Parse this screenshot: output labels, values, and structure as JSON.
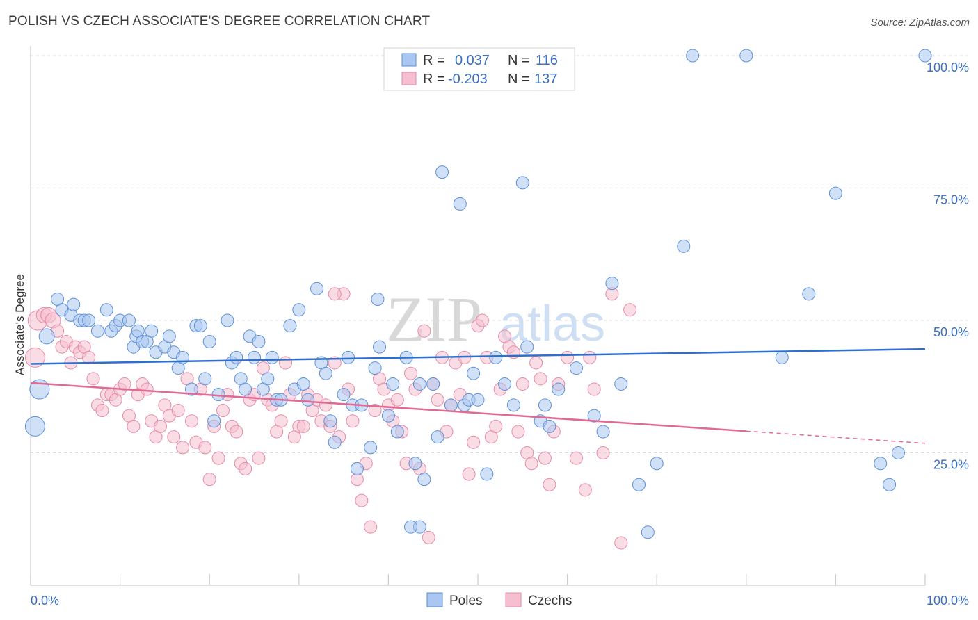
{
  "title": "POLISH VS CZECH ASSOCIATE'S DEGREE CORRELATION CHART",
  "source": "Source: ZipAtlas.com",
  "watermark": {
    "zip": "ZIP",
    "atlas": "atlas"
  },
  "legend": {
    "poles": {
      "r_label": "R =",
      "r_value": "0.037",
      "n_label": "N =",
      "n_value": "116"
    },
    "czechs": {
      "r_label": "R =",
      "r_value": "-0.203",
      "n_label": "N =",
      "n_value": "137"
    }
  },
  "colors": {
    "poles_fill": "#a9c7f0",
    "poles_stroke": "#5b8fd8",
    "poles_line": "#2d6fcf",
    "czechs_fill": "#f6bfd0",
    "czechs_stroke": "#e58aa8",
    "czechs_line": "#e06a93",
    "tick_label": "#3a6fc4"
  },
  "chart_data": {
    "type": "scatter",
    "title": "POLISH VS CZECH ASSOCIATE'S DEGREE CORRELATION CHART",
    "xlabel": "",
    "ylabel": "Associate's Degree",
    "xlim": [
      0,
      100
    ],
    "ylim": [
      0,
      100
    ],
    "x_tick_labels": [
      "0.0%",
      "100.0%"
    ],
    "y_tick_labels": [
      "25.0%",
      "50.0%",
      "75.0%",
      "100.0%"
    ],
    "y_ticks": [
      25,
      50,
      75,
      100
    ],
    "grid": true,
    "legend_items": [
      "Poles",
      "Czechs"
    ],
    "series": [
      {
        "name": "Poles",
        "trend": {
          "x0": 0,
          "y0": 41.8,
          "x1": 100,
          "y1": 44.6
        },
        "points": [
          [
            0.5,
            30
          ],
          [
            1,
            37
          ],
          [
            1.8,
            47
          ],
          [
            3,
            54
          ],
          [
            3.5,
            52
          ],
          [
            4.5,
            51
          ],
          [
            4.8,
            53
          ],
          [
            5.5,
            50
          ],
          [
            6,
            50
          ],
          [
            6.5,
            50
          ],
          [
            7.5,
            48
          ],
          [
            8.5,
            52
          ],
          [
            9,
            48
          ],
          [
            9.5,
            49
          ],
          [
            10,
            50
          ],
          [
            11,
            50
          ],
          [
            11.5,
            45
          ],
          [
            11.8,
            47
          ],
          [
            12,
            48
          ],
          [
            12.5,
            46
          ],
          [
            13,
            46
          ],
          [
            13.5,
            48
          ],
          [
            14,
            44
          ],
          [
            15,
            45
          ],
          [
            15.5,
            47
          ],
          [
            16,
            44
          ],
          [
            16.5,
            41
          ],
          [
            17,
            43
          ],
          [
            18,
            37
          ],
          [
            18.5,
            49
          ],
          [
            19,
            49
          ],
          [
            19.5,
            39
          ],
          [
            20,
            46
          ],
          [
            20.5,
            31
          ],
          [
            21,
            36
          ],
          [
            22,
            50
          ],
          [
            22.5,
            42
          ],
          [
            23,
            43
          ],
          [
            23.5,
            39
          ],
          [
            24,
            37
          ],
          [
            24.5,
            47
          ],
          [
            25,
            43
          ],
          [
            25.5,
            46
          ],
          [
            26,
            37
          ],
          [
            26.5,
            39
          ],
          [
            27,
            43
          ],
          [
            27.5,
            35
          ],
          [
            28,
            35
          ],
          [
            29,
            49
          ],
          [
            29.5,
            37
          ],
          [
            30,
            52
          ],
          [
            30.5,
            38
          ],
          [
            31,
            35
          ],
          [
            32,
            56
          ],
          [
            32.5,
            42
          ],
          [
            33,
            40
          ],
          [
            33.5,
            31
          ],
          [
            34,
            27
          ],
          [
            35,
            36
          ],
          [
            35.5,
            43
          ],
          [
            36,
            34
          ],
          [
            36.5,
            22
          ],
          [
            37,
            34
          ],
          [
            38,
            26
          ],
          [
            38.5,
            41
          ],
          [
            38.8,
            54
          ],
          [
            39,
            45
          ],
          [
            40,
            32
          ],
          [
            40.5,
            38
          ],
          [
            41,
            29
          ],
          [
            42,
            43
          ],
          [
            43,
            23
          ],
          [
            43.5,
            38
          ],
          [
            44,
            20
          ],
          [
            45,
            38
          ],
          [
            45.5,
            28
          ],
          [
            46,
            78
          ],
          [
            47,
            34
          ],
          [
            48,
            72
          ],
          [
            48.5,
            34
          ],
          [
            49,
            35
          ],
          [
            49.5,
            40
          ],
          [
            50,
            35
          ],
          [
            51,
            21
          ],
          [
            52,
            43
          ],
          [
            53,
            38
          ],
          [
            54,
            34
          ],
          [
            55,
            76
          ],
          [
            55.5,
            45
          ],
          [
            57,
            31
          ],
          [
            57.5,
            34
          ],
          [
            58,
            30
          ],
          [
            59,
            37
          ],
          [
            61,
            41
          ],
          [
            63,
            32
          ],
          [
            64,
            29
          ],
          [
            65,
            57
          ],
          [
            66,
            38
          ],
          [
            68,
            19
          ],
          [
            69,
            10
          ],
          [
            70,
            23
          ],
          [
            73,
            64
          ],
          [
            74,
            100
          ],
          [
            80,
            100
          ],
          [
            84,
            43
          ],
          [
            87,
            55
          ],
          [
            90,
            74
          ],
          [
            95,
            23
          ],
          [
            96,
            19
          ],
          [
            97,
            25
          ],
          [
            100,
            100
          ],
          [
            43.5,
            11
          ],
          [
            42.5,
            11
          ]
        ],
        "sizes_note": "larger markers near x=0"
      },
      {
        "name": "Czechs",
        "trend": {
          "x0": 0,
          "y0": 38.2,
          "x1": 80,
          "y1": 29.1,
          "dash_to_x": 100,
          "dash_to_y": 26.8
        },
        "points": [
          [
            0.5,
            43
          ],
          [
            0.8,
            50
          ],
          [
            1.5,
            51
          ],
          [
            2,
            51
          ],
          [
            2.5,
            50
          ],
          [
            3,
            48
          ],
          [
            3.5,
            45
          ],
          [
            4,
            46
          ],
          [
            4.5,
            42
          ],
          [
            5,
            45
          ],
          [
            5.5,
            44
          ],
          [
            6,
            45
          ],
          [
            6.5,
            43
          ],
          [
            7,
            39
          ],
          [
            7.5,
            34
          ],
          [
            8,
            33
          ],
          [
            8.5,
            36
          ],
          [
            9,
            36
          ],
          [
            9.5,
            35
          ],
          [
            10,
            37
          ],
          [
            10.5,
            38
          ],
          [
            11,
            32
          ],
          [
            11.5,
            30
          ],
          [
            12,
            36
          ],
          [
            12.5,
            38
          ],
          [
            13,
            37
          ],
          [
            13.5,
            31
          ],
          [
            14,
            28
          ],
          [
            14.5,
            30
          ],
          [
            15,
            34
          ],
          [
            15.5,
            32
          ],
          [
            16,
            28
          ],
          [
            16.5,
            33
          ],
          [
            17,
            26
          ],
          [
            17.5,
            39
          ],
          [
            18,
            31
          ],
          [
            18.5,
            27
          ],
          [
            19,
            37
          ],
          [
            19.5,
            26
          ],
          [
            20,
            20
          ],
          [
            20.5,
            30
          ],
          [
            21,
            24
          ],
          [
            21.5,
            33
          ],
          [
            22,
            36
          ],
          [
            22.5,
            30
          ],
          [
            23,
            29
          ],
          [
            23.5,
            23
          ],
          [
            24,
            22
          ],
          [
            24.5,
            35
          ],
          [
            25,
            36
          ],
          [
            25.5,
            24
          ],
          [
            26,
            41
          ],
          [
            26.5,
            35
          ],
          [
            27,
            34
          ],
          [
            27.5,
            29
          ],
          [
            28,
            31
          ],
          [
            28.5,
            42
          ],
          [
            29,
            36
          ],
          [
            29.5,
            28
          ],
          [
            30,
            30
          ],
          [
            30.5,
            30
          ],
          [
            31,
            36
          ],
          [
            31.5,
            33
          ],
          [
            32,
            35
          ],
          [
            32.5,
            31
          ],
          [
            33,
            34
          ],
          [
            33.5,
            30
          ],
          [
            34,
            42
          ],
          [
            34.5,
            28
          ],
          [
            35,
            55
          ],
          [
            35.5,
            37
          ],
          [
            36,
            31
          ],
          [
            36.5,
            20
          ],
          [
            37,
            16
          ],
          [
            37.5,
            23
          ],
          [
            38,
            11
          ],
          [
            38.5,
            33
          ],
          [
            39,
            39
          ],
          [
            39.5,
            37
          ],
          [
            40,
            34
          ],
          [
            40.5,
            31
          ],
          [
            41,
            35
          ],
          [
            41.5,
            29
          ],
          [
            42,
            23
          ],
          [
            42.5,
            40
          ],
          [
            43,
            37
          ],
          [
            43.5,
            22
          ],
          [
            44,
            48
          ],
          [
            44.5,
            9
          ],
          [
            45,
            38
          ],
          [
            45.5,
            35
          ],
          [
            46,
            43
          ],
          [
            46.5,
            29
          ],
          [
            47,
            34
          ],
          [
            47.5,
            42
          ],
          [
            48,
            36
          ],
          [
            48.5,
            43
          ],
          [
            49,
            21
          ],
          [
            49.5,
            27
          ],
          [
            50,
            49
          ],
          [
            50.5,
            50
          ],
          [
            51,
            43
          ],
          [
            51.5,
            28
          ],
          [
            52,
            30
          ],
          [
            52.5,
            37
          ],
          [
            53,
            47
          ],
          [
            53.5,
            45
          ],
          [
            54,
            44
          ],
          [
            54.5,
            29
          ],
          [
            55,
            38
          ],
          [
            55.5,
            25
          ],
          [
            56,
            23
          ],
          [
            56.5,
            42
          ],
          [
            57,
            39
          ],
          [
            57.5,
            24
          ],
          [
            58,
            19
          ],
          [
            58.5,
            29
          ],
          [
            59,
            38
          ],
          [
            60,
            43
          ],
          [
            61,
            24
          ],
          [
            62,
            18
          ],
          [
            62.5,
            43
          ],
          [
            63,
            37
          ],
          [
            64,
            25
          ],
          [
            65,
            55
          ],
          [
            66,
            8
          ],
          [
            67,
            52
          ],
          [
            34,
            55
          ]
        ],
        "sizes_note": "larger markers near x=0"
      }
    ]
  }
}
